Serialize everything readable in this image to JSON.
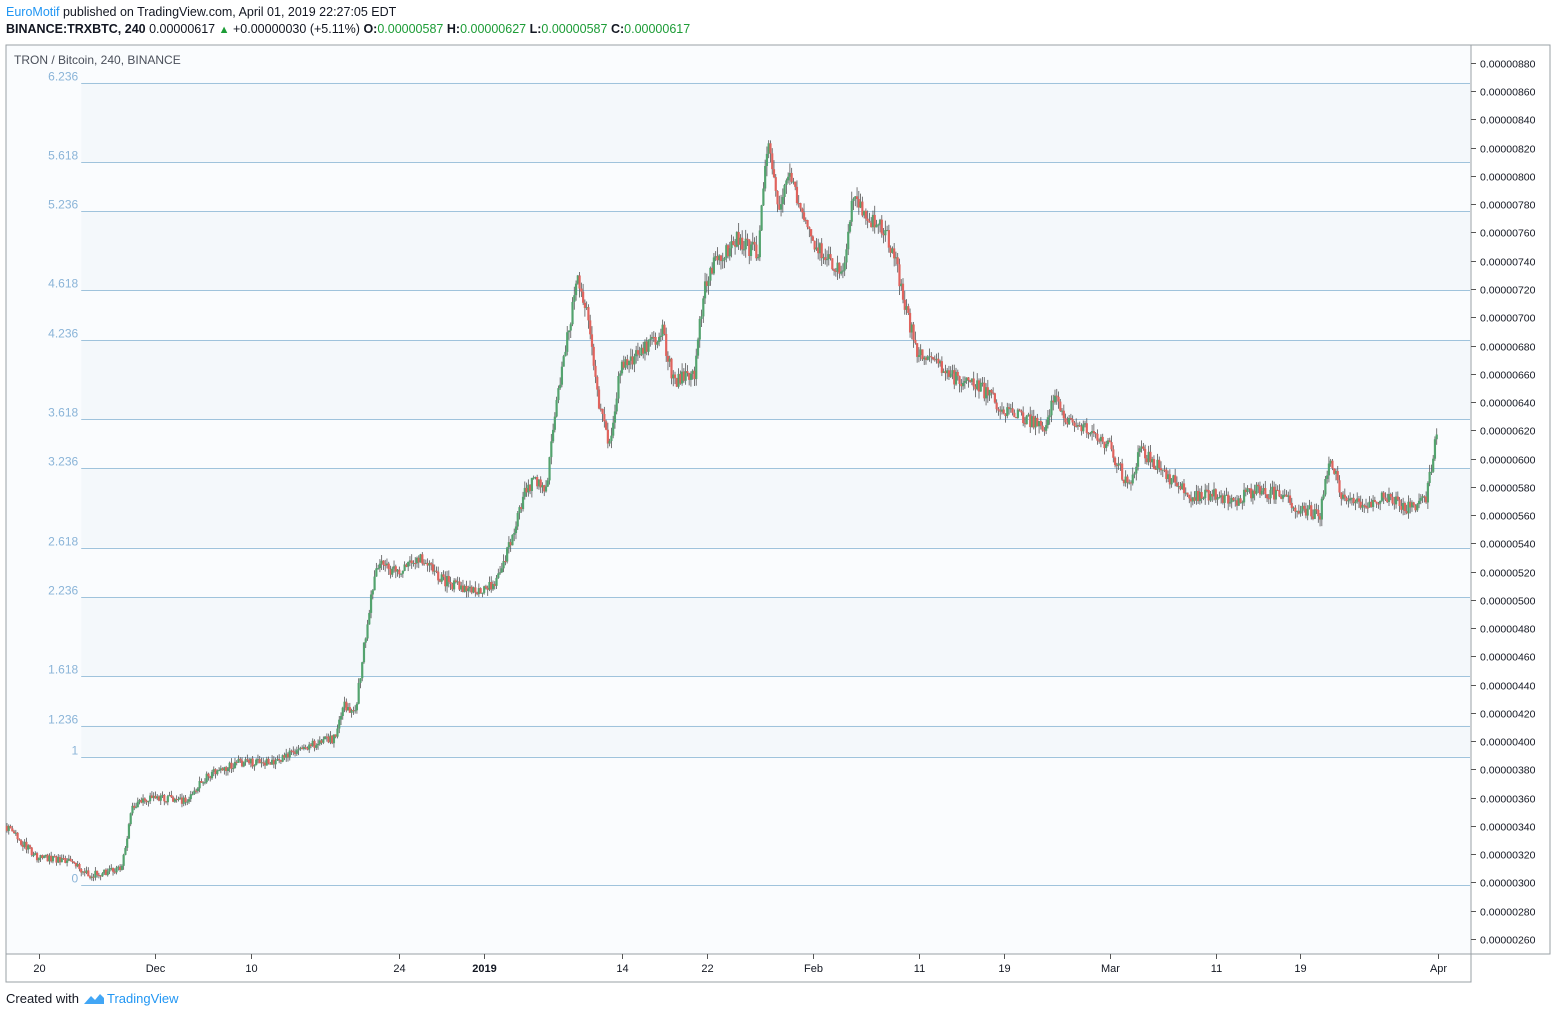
{
  "header": {
    "author": "EuroMotif",
    "published_text": "published on TradingView.com, April 01, 2019 22:27:05 EDT",
    "symbol": "BINANCE:TRXBTC, 240",
    "last": "0.00000617",
    "change": "+0.00000030 (+5.11%)",
    "o_label": "O:",
    "o_value": "0.00000587",
    "h_label": "H:",
    "h_value": "0.00000627",
    "l_label": "L:",
    "l_value": "0.00000587",
    "c_label": "C:",
    "c_value": "0.00000617"
  },
  "footer": {
    "created_with": "Created with",
    "brand": "TradingView"
  },
  "colors": {
    "up": "#53a36e",
    "down": "#e0635d",
    "wick": "#555555",
    "fib_line": "#9fc3dc",
    "fib_label": "#8ab4d8",
    "band_fill": "#f4f8fb",
    "plot_bg": "#fafcfe"
  },
  "chart_data": {
    "type": "candlestick",
    "title": "TRON / Bitcoin, 240, BINANCE",
    "interval": "240",
    "x_tick_labels": [
      "20",
      "Dec",
      "10",
      "24",
      "2019",
      "14",
      "22",
      "Feb",
      "11",
      "19",
      "Mar",
      "11",
      "19",
      "Apr"
    ],
    "x_tick_dates": [
      "2018-11-20",
      "2018-12-01",
      "2018-12-10",
      "2018-12-24",
      "2019-01-01",
      "2019-01-14",
      "2019-01-22",
      "2019-02-01",
      "2019-02-11",
      "2019-02-19",
      "2019-03-01",
      "2019-03-11",
      "2019-03-19",
      "2019-04-01"
    ],
    "x_range": [
      "2018-11-17",
      "2019-04-04"
    ],
    "y_range": [
      2.5e-06,
      8.92e-06
    ],
    "y_tick_values": [
      2.6e-06,
      2.8e-06,
      3e-06,
      3.2e-06,
      3.4e-06,
      3.6e-06,
      3.8e-06,
      4e-06,
      4.2e-06,
      4.4e-06,
      4.6e-06,
      4.8e-06,
      5e-06,
      5.2e-06,
      5.4e-06,
      5.6e-06,
      5.8e-06,
      6e-06,
      6.2e-06,
      6.4e-06,
      6.6e-06,
      6.8e-06,
      7e-06,
      7.2e-06,
      7.4e-06,
      7.6e-06,
      7.8e-06,
      8e-06,
      8.2e-06,
      8.4e-06,
      8.6e-06,
      8.8e-06
    ],
    "y_tick_labels": [
      "0.00000260",
      "0.00000280",
      "0.00000300",
      "0.00000320",
      "0.00000340",
      "0.00000360",
      "0.00000380",
      "0.00000400",
      "0.00000420",
      "0.00000440",
      "0.00000460",
      "0.00000480",
      "0.00000500",
      "0.00000520",
      "0.00000540",
      "0.00000560",
      "0.00000580",
      "0.00000600",
      "0.00000620",
      "0.00000640",
      "0.00000660",
      "0.00000680",
      "0.00000700",
      "0.00000720",
      "0.00000740",
      "0.00000760",
      "0.00000780",
      "0.00000800",
      "0.00000820",
      "0.00000840",
      "0.00000860",
      "0.00000880"
    ],
    "fib_extension": {
      "start_date": "2018-11-24",
      "end_date": "2019-04-04",
      "levels": [
        {
          "label": "0",
          "price": 2.98e-06
        },
        {
          "label": "1",
          "price": 3.89e-06
        },
        {
          "label": "1.236",
          "price": 4.11e-06
        },
        {
          "label": "1.618",
          "price": 4.46e-06
        },
        {
          "label": "2.236",
          "price": 5.02e-06
        },
        {
          "label": "2.618",
          "price": 5.37e-06
        },
        {
          "label": "3.236",
          "price": 5.93e-06
        },
        {
          "label": "3.618",
          "price": 6.28e-06
        },
        {
          "label": "4.236",
          "price": 6.84e-06
        },
        {
          "label": "4.618",
          "price": 7.19e-06
        },
        {
          "label": "5.236",
          "price": 7.75e-06
        },
        {
          "label": "5.618",
          "price": 8.1e-06
        },
        {
          "label": "6.236",
          "price": 8.66e-06
        }
      ],
      "shaded_between": [
        [
          "1",
          "1.236"
        ],
        [
          "1.618",
          "2.236"
        ],
        [
          "2.618",
          "3.236"
        ],
        [
          "3.618",
          "4.236"
        ],
        [
          "4.618",
          "5.236"
        ],
        [
          "5.618",
          "6.236"
        ]
      ]
    },
    "price_path": [
      {
        "date": "2018-11-17",
        "price": 3.4e-06
      },
      {
        "date": "2018-11-19",
        "price": 3.25e-06
      },
      {
        "date": "2018-11-20",
        "price": 3.18e-06
      },
      {
        "date": "2018-11-23",
        "price": 3.15e-06
      },
      {
        "date": "2018-11-25",
        "price": 3.05e-06
      },
      {
        "date": "2018-11-28",
        "price": 3.1e-06
      },
      {
        "date": "2018-11-29",
        "price": 3.55e-06
      },
      {
        "date": "2018-12-01",
        "price": 3.6e-06
      },
      {
        "date": "2018-12-04",
        "price": 3.58e-06
      },
      {
        "date": "2018-12-06",
        "price": 3.75e-06
      },
      {
        "date": "2018-12-09",
        "price": 3.85e-06
      },
      {
        "date": "2018-12-12",
        "price": 3.85e-06
      },
      {
        "date": "2018-12-15",
        "price": 3.95e-06
      },
      {
        "date": "2018-12-18",
        "price": 4.02e-06
      },
      {
        "date": "2018-12-19",
        "price": 4.25e-06
      },
      {
        "date": "2018-12-20",
        "price": 4.2e-06
      },
      {
        "date": "2018-12-21",
        "price": 4.75e-06
      },
      {
        "date": "2018-12-22",
        "price": 5.25e-06
      },
      {
        "date": "2018-12-24",
        "price": 5.2e-06
      },
      {
        "date": "2018-12-26",
        "price": 5.3e-06
      },
      {
        "date": "2018-12-28",
        "price": 5.15e-06
      },
      {
        "date": "2018-12-31",
        "price": 5.05e-06
      },
      {
        "date": "2019-01-02",
        "price": 5.1e-06
      },
      {
        "date": "2019-01-03",
        "price": 5.25e-06
      },
      {
        "date": "2019-01-05",
        "price": 5.75e-06
      },
      {
        "date": "2019-01-06",
        "price": 5.85e-06
      },
      {
        "date": "2019-01-07",
        "price": 5.75e-06
      },
      {
        "date": "2019-01-08",
        "price": 6.4e-06
      },
      {
        "date": "2019-01-10",
        "price": 7.3e-06
      },
      {
        "date": "2019-01-11",
        "price": 7e-06
      },
      {
        "date": "2019-01-12",
        "price": 6.4e-06
      },
      {
        "date": "2019-01-13",
        "price": 6.1e-06
      },
      {
        "date": "2019-01-14",
        "price": 6.65e-06
      },
      {
        "date": "2019-01-16",
        "price": 6.75e-06
      },
      {
        "date": "2019-01-18",
        "price": 6.9e-06
      },
      {
        "date": "2019-01-19",
        "price": 6.55e-06
      },
      {
        "date": "2019-01-21",
        "price": 6.6e-06
      },
      {
        "date": "2019-01-22",
        "price": 7.25e-06
      },
      {
        "date": "2019-01-23",
        "price": 7.4e-06
      },
      {
        "date": "2019-01-25",
        "price": 7.55e-06
      },
      {
        "date": "2019-01-27",
        "price": 7.45e-06
      },
      {
        "date": "2019-01-28",
        "price": 8.3e-06
      },
      {
        "date": "2019-01-29",
        "price": 7.75e-06
      },
      {
        "date": "2019-01-30",
        "price": 8e-06
      },
      {
        "date": "2019-01-31",
        "price": 7.8e-06
      },
      {
        "date": "2019-02-01",
        "price": 7.55e-06
      },
      {
        "date": "2019-02-03",
        "price": 7.4e-06
      },
      {
        "date": "2019-02-04",
        "price": 7.3e-06
      },
      {
        "date": "2019-02-05",
        "price": 7.9e-06
      },
      {
        "date": "2019-02-06",
        "price": 7.75e-06
      },
      {
        "date": "2019-02-08",
        "price": 7.6e-06
      },
      {
        "date": "2019-02-09",
        "price": 7.4e-06
      },
      {
        "date": "2019-02-10",
        "price": 7.05e-06
      },
      {
        "date": "2019-02-11",
        "price": 6.75e-06
      },
      {
        "date": "2019-02-13",
        "price": 6.65e-06
      },
      {
        "date": "2019-02-15",
        "price": 6.55e-06
      },
      {
        "date": "2019-02-17",
        "price": 6.5e-06
      },
      {
        "date": "2019-02-19",
        "price": 6.35e-06
      },
      {
        "date": "2019-02-21",
        "price": 6.3e-06
      },
      {
        "date": "2019-02-23",
        "price": 6.2e-06
      },
      {
        "date": "2019-02-24",
        "price": 6.45e-06
      },
      {
        "date": "2019-02-25",
        "price": 6.3e-06
      },
      {
        "date": "2019-02-27",
        "price": 6.22e-06
      },
      {
        "date": "2019-03-01",
        "price": 6.1e-06
      },
      {
        "date": "2019-03-03",
        "price": 5.8e-06
      },
      {
        "date": "2019-03-04",
        "price": 6.05e-06
      },
      {
        "date": "2019-03-05",
        "price": 6e-06
      },
      {
        "date": "2019-03-07",
        "price": 5.85e-06
      },
      {
        "date": "2019-03-09",
        "price": 5.72e-06
      },
      {
        "date": "2019-03-11",
        "price": 5.75e-06
      },
      {
        "date": "2019-03-13",
        "price": 5.7e-06
      },
      {
        "date": "2019-03-15",
        "price": 5.78e-06
      },
      {
        "date": "2019-03-17",
        "price": 5.75e-06
      },
      {
        "date": "2019-03-19",
        "price": 5.65e-06
      },
      {
        "date": "2019-03-21",
        "price": 5.6e-06
      },
      {
        "date": "2019-03-22",
        "price": 6e-06
      },
      {
        "date": "2019-03-23",
        "price": 5.75e-06
      },
      {
        "date": "2019-03-25",
        "price": 5.65e-06
      },
      {
        "date": "2019-03-27",
        "price": 5.75e-06
      },
      {
        "date": "2019-03-29",
        "price": 5.65e-06
      },
      {
        "date": "2019-03-31",
        "price": 5.7e-06
      },
      {
        "date": "2019-04-01",
        "price": 6.17e-06
      }
    ]
  }
}
